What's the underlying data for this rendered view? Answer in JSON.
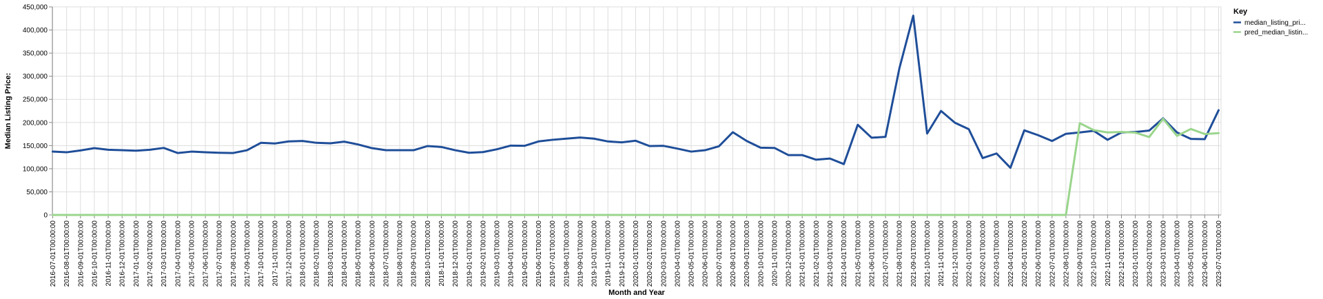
{
  "chart_data": {
    "type": "line",
    "xlabel": "Month and Year",
    "ylabel": "Median Listing Price:",
    "ylim": [
      0,
      450000
    ],
    "y_ticks": [
      "0",
      "50,000",
      "100,000",
      "150,000",
      "200,000",
      "250,000",
      "300,000",
      "350,000",
      "400,000",
      "450,000"
    ],
    "grid": true,
    "legend": {
      "title": "Key",
      "position": "right"
    },
    "x": [
      "2016-07-01T00:00:00",
      "2016-08-01T00:00:00",
      "2016-09-01T00:00:00",
      "2016-10-01T00:00:00",
      "2016-11-01T00:00:00",
      "2016-12-01T00:00:00",
      "2017-01-01T00:00:00",
      "2017-02-01T00:00:00",
      "2017-03-01T00:00:00",
      "2017-04-01T00:00:00",
      "2017-05-01T00:00:00",
      "2017-06-01T00:00:00",
      "2017-07-01T00:00:00",
      "2017-08-01T00:00:00",
      "2017-09-01T00:00:00",
      "2017-10-01T00:00:00",
      "2017-11-01T00:00:00",
      "2017-12-01T00:00:00",
      "2018-01-01T00:00:00",
      "2018-02-01T00:00:00",
      "2018-03-01T00:00:00",
      "2018-04-01T00:00:00",
      "2018-05-01T00:00:00",
      "2018-06-01T00:00:00",
      "2018-07-01T00:00:00",
      "2018-08-01T00:00:00",
      "2018-09-01T00:00:00",
      "2018-10-01T00:00:00",
      "2018-11-01T00:00:00",
      "2018-12-01T00:00:00",
      "2019-01-01T00:00:00",
      "2019-02-01T00:00:00",
      "2019-03-01T00:00:00",
      "2019-04-01T00:00:00",
      "2019-05-01T00:00:00",
      "2019-06-01T00:00:00",
      "2019-07-01T00:00:00",
      "2019-08-01T00:00:00",
      "2019-09-01T00:00:00",
      "2019-10-01T00:00:00",
      "2019-11-01T00:00:00",
      "2019-12-01T00:00:00",
      "2020-01-01T00:00:00",
      "2020-02-01T00:00:00",
      "2020-03-01T00:00:00",
      "2020-04-01T00:00:00",
      "2020-05-01T00:00:00",
      "2020-06-01T00:00:00",
      "2020-07-01T00:00:00",
      "2020-08-01T00:00:00",
      "2020-09-01T00:00:00",
      "2020-10-01T00:00:00",
      "2020-11-01T00:00:00",
      "2020-12-01T00:00:00",
      "2021-01-01T00:00:00",
      "2021-02-01T00:00:00",
      "2021-03-01T00:00:00",
      "2021-04-01T00:00:00",
      "2021-05-01T00:00:00",
      "2021-06-01T00:00:00",
      "2021-07-01T00:00:00",
      "2021-08-01T00:00:00",
      "2021-09-01T00:00:00",
      "2021-10-01T00:00:00",
      "2021-11-01T00:00:00",
      "2021-12-01T00:00:00",
      "2022-01-01T00:00:00",
      "2022-02-01T00:00:00",
      "2022-03-01T00:00:00",
      "2022-04-01T00:00:00",
      "2022-05-01T00:00:00",
      "2022-06-01T00:00:00",
      "2022-07-01T00:00:00",
      "2022-08-01T00:00:00",
      "2022-09-01T00:00:00",
      "2022-10-01T00:00:00",
      "2022-11-01T00:00:00",
      "2022-12-01T00:00:00",
      "2023-01-01T00:00:00",
      "2023-02-01T00:00:00",
      "2023-03-01T00:00:00",
      "2023-04-01T00:00:00",
      "2023-05-01T00:00:00",
      "2023-06-01T00:00:00",
      "2023-07-01T00:00:00"
    ],
    "series": [
      {
        "name": "median_listing_pri...",
        "color": "#1f4e99",
        "values": [
          137000,
          135500,
          139500,
          144500,
          141000,
          140000,
          139000,
          141000,
          145000,
          134000,
          137000,
          135500,
          134500,
          134000,
          140000,
          156000,
          154500,
          159000,
          160000,
          156000,
          155000,
          158500,
          152500,
          144500,
          140000,
          140000,
          140000,
          149000,
          147000,
          140000,
          134500,
          136000,
          142000,
          150000,
          149500,
          159000,
          162500,
          165000,
          167500,
          165000,
          159000,
          157000,
          160500,
          149000,
          149500,
          143500,
          137000,
          140000,
          148500,
          179000,
          160000,
          145500,
          145000,
          129500,
          129500,
          119500,
          122000,
          110000,
          195000,
          167000,
          169000,
          317000,
          431000,
          176000,
          225000,
          199500,
          185500,
          123000,
          133000,
          102000,
          183000,
          172500,
          160000,
          175500,
          178500,
          182000,
          162500,
          178500,
          179500,
          182500,
          209000,
          178500,
          164500,
          164000,
          226500
        ]
      },
      {
        "name": "pred_median_listin...",
        "color": "#9ad58c",
        "values": [
          0,
          0,
          0,
          0,
          0,
          0,
          0,
          0,
          0,
          0,
          0,
          0,
          0,
          0,
          0,
          0,
          0,
          0,
          0,
          0,
          0,
          0,
          0,
          0,
          0,
          0,
          0,
          0,
          0,
          0,
          0,
          0,
          0,
          0,
          0,
          0,
          0,
          0,
          0,
          0,
          0,
          0,
          0,
          0,
          0,
          0,
          0,
          0,
          0,
          0,
          0,
          0,
          0,
          0,
          0,
          0,
          0,
          0,
          0,
          0,
          0,
          0,
          0,
          0,
          0,
          0,
          0,
          0,
          0,
          0,
          0,
          0,
          0,
          0,
          198500,
          183500,
          178500,
          179500,
          178000,
          168500,
          208000,
          171000,
          186000,
          175000,
          177000
        ]
      }
    ]
  }
}
